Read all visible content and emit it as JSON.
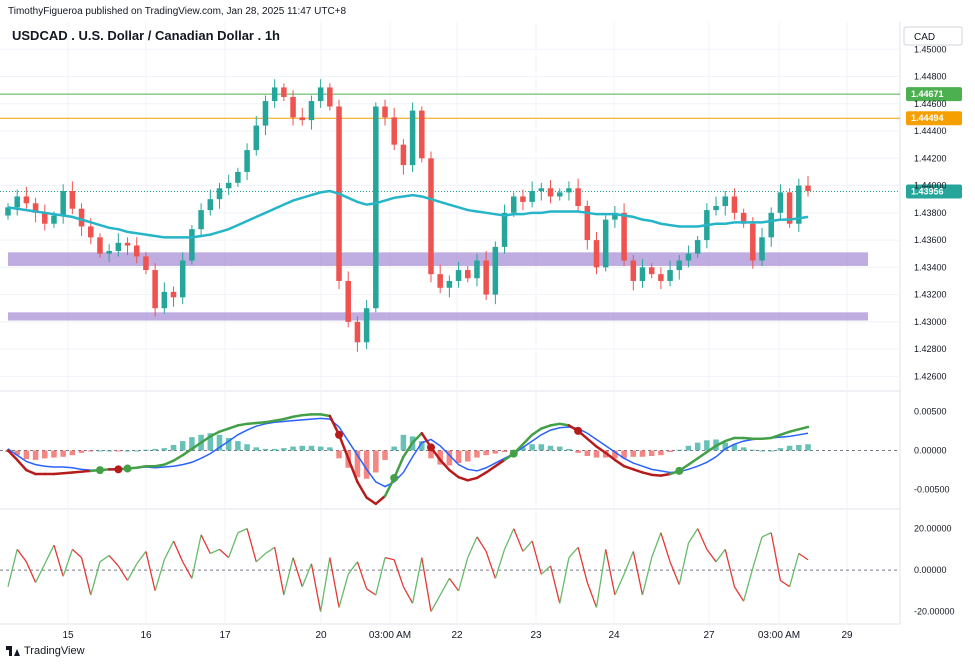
{
  "publisher_line": "TimothyFigueroa published on TradingView.com, Jan 28, 2025 11:47 UTC+8",
  "footer": {
    "brand": "TradingView",
    "logo_icon": "tradingview-logo-icon"
  },
  "colors": {
    "up": "#26a69a",
    "down": "#ef5350",
    "ma": "#26b5c8",
    "zone": "#9575cd",
    "line_green": "#4caf50",
    "line_orange": "#f59f00",
    "osc_blue": "#2962ff",
    "osc_green": "#43a047",
    "osc_red": "#b71c1c"
  },
  "chart_data": [
    {
      "type": "candlestick",
      "title": "USDCAD . U.S. Dollar / Canadian Dollar . 1h",
      "currency": "CAD",
      "ylim": [
        1.425,
        1.452
      ],
      "y_ticks": [
        "1.45000",
        "1.44800",
        "1.44600",
        "1.44400",
        "1.44200",
        "1.44000",
        "1.43800",
        "1.43600",
        "1.43400",
        "1.43200",
        "1.43000",
        "1.42800",
        "1.42600"
      ],
      "x_ticks": [
        "15",
        "16",
        "17",
        "20",
        "03:00 AM",
        "22",
        "23",
        "24",
        "27",
        "03:00 AM",
        "29"
      ],
      "horizontal_lines": [
        {
          "price": 1.44671,
          "label": "1.44671",
          "color": "#4caf50"
        },
        {
          "price": 1.44494,
          "label": "1.44494",
          "color": "#f59f00"
        }
      ],
      "last_price": {
        "price": 1.43956,
        "label": "1.43956"
      },
      "zones": [
        {
          "from": 1.4341,
          "to": 1.4351
        },
        {
          "from": 1.4301,
          "to": 1.4307
        }
      ],
      "closes": [
        1.4384,
        1.4392,
        1.4387,
        1.438,
        1.4372,
        1.4378,
        1.4396,
        1.4383,
        1.437,
        1.4362,
        1.435,
        1.4352,
        1.4358,
        1.4356,
        1.4348,
        1.4338,
        1.431,
        1.4322,
        1.4318,
        1.4345,
        1.4368,
        1.4382,
        1.439,
        1.4398,
        1.4402,
        1.441,
        1.4426,
        1.4444,
        1.4462,
        1.4472,
        1.4465,
        1.445,
        1.4448,
        1.4462,
        1.4472,
        1.4458,
        1.433,
        1.43,
        1.4285,
        1.431,
        1.4458,
        1.445,
        1.443,
        1.4415,
        1.4455,
        1.442,
        1.4335,
        1.4325,
        1.433,
        1.4338,
        1.4332,
        1.4345,
        1.432,
        1.4355,
        1.438,
        1.4392,
        1.4388,
        1.4396,
        1.4398,
        1.4392,
        1.4395,
        1.4398,
        1.4385,
        1.436,
        1.434,
        1.4375,
        1.438,
        1.4345,
        1.433,
        1.434,
        1.4335,
        1.433,
        1.4338,
        1.4345,
        1.435,
        1.436,
        1.4382,
        1.4385,
        1.4392,
        1.438,
        1.4372,
        1.4345,
        1.4362,
        1.438,
        1.4395,
        1.4372,
        1.44,
        1.4396
      ],
      "ma": [
        1.4384,
        1.4383,
        1.4382,
        1.4381,
        1.438,
        1.4379,
        1.4378,
        1.4377,
        1.4375,
        1.4373,
        1.4371,
        1.4369,
        1.4368,
        1.4366,
        1.4365,
        1.4364,
        1.4363,
        1.4362,
        1.4362,
        1.4362,
        1.4362,
        1.4363,
        1.4364,
        1.4366,
        1.4368,
        1.4371,
        1.4374,
        1.4377,
        1.438,
        1.4383,
        1.4386,
        1.4389,
        1.4391,
        1.4393,
        1.4395,
        1.4396,
        1.4394,
        1.4391,
        1.4388,
        1.4386,
        1.4387,
        1.4389,
        1.4391,
        1.4392,
        1.4393,
        1.4392,
        1.439,
        1.4388,
        1.4386,
        1.4384,
        1.4382,
        1.4381,
        1.438,
        1.4379,
        1.4378,
        1.4379,
        1.4379,
        1.438,
        1.438,
        1.4381,
        1.4381,
        1.4381,
        1.4381,
        1.438,
        1.4379,
        1.4379,
        1.4379,
        1.4378,
        1.4377,
        1.4375,
        1.4374,
        1.4372,
        1.4371,
        1.437,
        1.437,
        1.437,
        1.4371,
        1.4372,
        1.4372,
        1.4373,
        1.4373,
        1.4373,
        1.4373,
        1.4374,
        1.4375,
        1.4375,
        1.4376,
        1.4377
      ]
    },
    {
      "type": "oscillator",
      "ylim": [
        -0.0072,
        0.0072
      ],
      "y_ticks": [
        "0.00500",
        "0.00000",
        "-0.00500"
      ],
      "signal": [
        0.0002,
        -0.0006,
        -0.0014,
        -0.0018,
        -0.002,
        -0.0021,
        -0.0021,
        -0.0022,
        -0.0024,
        -0.0025,
        -0.0025,
        -0.0024,
        -0.0023,
        -0.0023,
        -0.0022,
        -0.0021,
        -0.0022,
        -0.0021,
        -0.002,
        -0.0018,
        -0.0015,
        -0.001,
        -0.0004,
        0.0004,
        0.0012,
        0.002,
        0.0026,
        0.0031,
        0.0034,
        0.0036,
        0.0037,
        0.0038,
        0.0039,
        0.004,
        0.0041,
        0.004,
        0.003,
        0.0012,
        -0.0006,
        -0.0024,
        -0.004,
        -0.0046,
        -0.004,
        -0.0028,
        -0.0008,
        0.001,
        0.0014,
        0.0006,
        -0.0006,
        -0.0018,
        -0.0024,
        -0.0026,
        -0.0022,
        -0.0016,
        -0.001,
        -0.0004,
        0.0004,
        0.0012,
        0.002,
        0.0026,
        0.0029,
        0.003,
        0.0028,
        0.0022,
        0.0014,
        0.0006,
        -0.0002,
        -0.001,
        -0.0016,
        -0.002,
        -0.0024,
        -0.0026,
        -0.0028,
        -0.0027,
        -0.0024,
        -0.002,
        -0.0015,
        -0.0008,
        0.0002,
        0.0008,
        0.0012,
        0.0014,
        0.0015,
        0.0016,
        0.0017,
        0.0018,
        0.002,
        0.0022
      ],
      "macd": [
        0.0,
        -0.0012,
        -0.0025,
        -0.003,
        -0.003,
        -0.003,
        -0.0029,
        -0.0028,
        -0.0027,
        -0.0026,
        -0.0025,
        -0.0024,
        -0.0024,
        -0.0023,
        -0.0022,
        -0.002,
        -0.002,
        -0.0018,
        -0.0013,
        -0.0006,
        0.0002,
        0.001,
        0.0018,
        0.0024,
        0.0028,
        0.0032,
        0.0034,
        0.0035,
        0.0036,
        0.0038,
        0.004,
        0.0043,
        0.0045,
        0.0046,
        0.0046,
        0.0044,
        0.002,
        -0.001,
        -0.004,
        -0.006,
        -0.0068,
        -0.0058,
        -0.0035,
        -0.0008,
        0.001,
        0.0022,
        0.0004,
        -0.0012,
        -0.0025,
        -0.0034,
        -0.0038,
        -0.0035,
        -0.0028,
        -0.002,
        -0.0012,
        -0.0004,
        0.0008,
        0.002,
        0.0028,
        0.0032,
        0.0034,
        0.0032,
        0.0025,
        0.0015,
        0.0005,
        -0.0003,
        -0.0012,
        -0.002,
        -0.0024,
        -0.0028,
        -0.0031,
        -0.0032,
        -0.003,
        -0.0026,
        -0.0018,
        -0.001,
        -0.0002,
        0.0006,
        0.0012,
        0.0016,
        0.0016,
        0.0015,
        0.0015,
        0.0016,
        0.002,
        0.0024,
        0.0027,
        0.003
      ]
    },
    {
      "type": "line",
      "ylim": [
        -25,
        28
      ],
      "y_ticks": [
        "20.00000",
        "0.00000",
        "-20.00000"
      ],
      "values": [
        -8,
        10,
        4,
        -6,
        3,
        12,
        -3,
        10,
        6,
        -12,
        4,
        7,
        2,
        -5,
        3,
        9,
        -10,
        5,
        14,
        4,
        -4,
        17,
        8,
        10,
        6,
        18,
        20,
        4,
        8,
        11,
        -12,
        6,
        -8,
        3,
        -20,
        6,
        -18,
        -2,
        4,
        -9,
        -12,
        6,
        5,
        -8,
        -16,
        6,
        -20,
        -12,
        -4,
        -10,
        6,
        16,
        9,
        -4,
        10,
        20,
        9,
        14,
        -2,
        2,
        -16,
        6,
        11,
        -6,
        -18,
        10,
        -12,
        -2,
        9,
        -12,
        6,
        18,
        4,
        -7,
        13,
        20,
        10,
        4,
        10,
        -8,
        -15,
        1,
        16,
        18,
        -5,
        -8,
        8,
        5
      ]
    }
  ]
}
